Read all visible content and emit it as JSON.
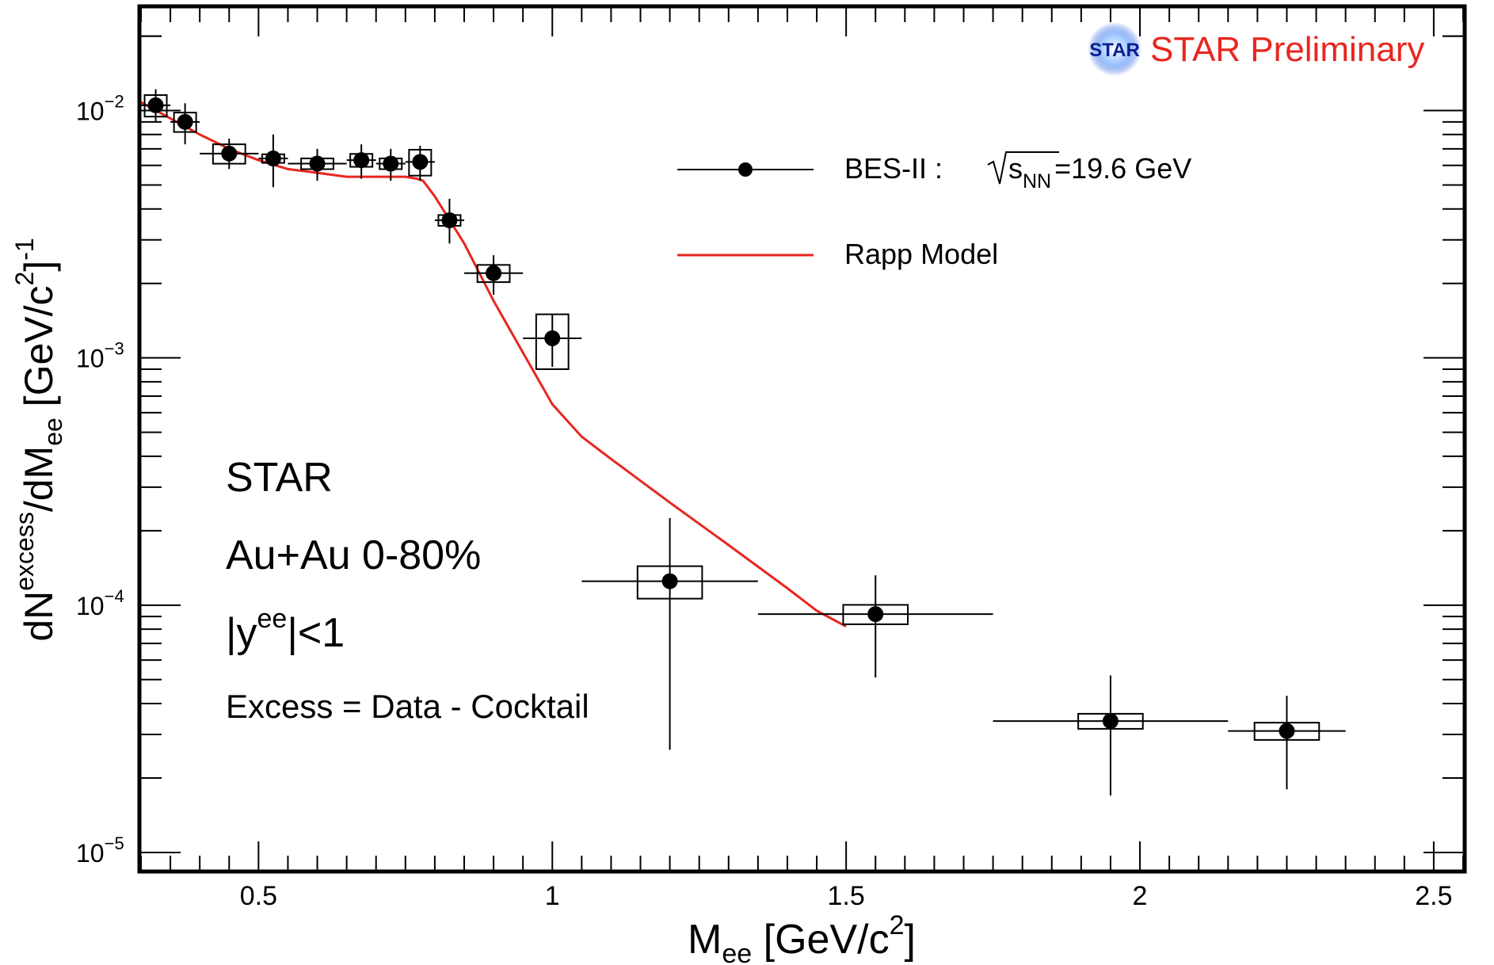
{
  "chart_data": {
    "type": "scatter",
    "yscale": "log",
    "xlim": [
      0.3,
      2.55
    ],
    "ylim": [
      8.5e-06,
      0.026
    ],
    "xticks": [
      {
        "value": 0.5,
        "label": "0.5"
      },
      {
        "value": 1,
        "label": "1"
      },
      {
        "value": 1.5,
        "label": "1.5"
      },
      {
        "value": 2,
        "label": "2"
      },
      {
        "value": 2.5,
        "label": "2.5"
      }
    ],
    "yticks": [
      {
        "value": 0.01,
        "base": "10",
        "exp": "−2"
      },
      {
        "value": 0.001,
        "base": "10",
        "exp": "−3"
      },
      {
        "value": 0.0001,
        "base": "10",
        "exp": "−4"
      },
      {
        "value": 1e-05,
        "base": "10",
        "exp": "−5"
      }
    ],
    "xlabel": {
      "main": "M",
      "sub": "ee",
      "rest": " [GeV/c",
      "sup": "2",
      "close": "]"
    },
    "ylabel": {
      "p1": "dN",
      "sup1": "excess",
      "p2": "/dM",
      "sub1": "ee",
      "p3": " [GeV/c",
      "sup2": "2",
      "p4": "]",
      "sup3": "-1"
    },
    "badge": {
      "logo_text": "STAR",
      "text": "STAR Preliminary",
      "color": "#e8261f"
    },
    "annotations": {
      "line1": "STAR",
      "line2": "Au+Au 0-80%",
      "line3_pre": "|y",
      "line3_sup": "ee",
      "line3_post": "|<1",
      "line4": "Excess = Data - Cocktail"
    },
    "legend": {
      "data_label": "BES-II :",
      "energy_var": "s",
      "energy_sub": "NN",
      "energy_value": "=19.6 GeV",
      "model_label": "Rapp Model",
      "model_color": "#e8261f"
    },
    "series": [
      {
        "name": "BES-II 19.6 GeV",
        "kind": "points",
        "points": [
          {
            "x": 0.325,
            "xerr": 0.025,
            "y": 0.0105,
            "ylo": 0.009,
            "yhi": 0.0122,
            "sys": 0.1
          },
          {
            "x": 0.375,
            "xerr": 0.025,
            "y": 0.009,
            "ylo": 0.0073,
            "yhi": 0.0107,
            "sys": 0.09
          },
          {
            "x": 0.45,
            "xerr": 0.05,
            "y": 0.0067,
            "ylo": 0.0058,
            "yhi": 0.0077,
            "sys": 0.09
          },
          {
            "x": 0.525,
            "xerr": 0.025,
            "y": 0.0064,
            "ylo": 0.0049,
            "yhi": 0.008,
            "sys": 0.04
          },
          {
            "x": 0.6,
            "xerr": 0.05,
            "y": 0.0061,
            "ylo": 0.0052,
            "yhi": 0.007,
            "sys": 0.05
          },
          {
            "x": 0.675,
            "xerr": 0.025,
            "y": 0.0063,
            "ylo": 0.0053,
            "yhi": 0.0073,
            "sys": 0.06
          },
          {
            "x": 0.725,
            "xerr": 0.025,
            "y": 0.0061,
            "ylo": 0.0052,
            "yhi": 0.007,
            "sys": 0.05
          },
          {
            "x": 0.775,
            "xerr": 0.025,
            "y": 0.0062,
            "ylo": 0.0052,
            "yhi": 0.0072,
            "sys": 0.12
          },
          {
            "x": 0.825,
            "xerr": 0.025,
            "y": 0.0036,
            "ylo": 0.0029,
            "yhi": 0.0044,
            "sys": 0.05
          },
          {
            "x": 0.9,
            "xerr": 0.05,
            "y": 0.0022,
            "ylo": 0.0018,
            "yhi": 0.0026,
            "sys": 0.08
          },
          {
            "x": 1.0,
            "xerr": 0.05,
            "y": 0.0012,
            "ylo": 0.00092,
            "yhi": 0.0015,
            "sys": 0.25
          },
          {
            "x": 1.2,
            "xerr": 0.15,
            "y": 0.000125,
            "ylo": 2.6e-05,
            "yhi": 0.000225,
            "sys": 0.15
          },
          {
            "x": 1.55,
            "xerr": 0.2,
            "y": 9.2e-05,
            "ylo": 5.1e-05,
            "yhi": 0.000132,
            "sys": 0.09
          },
          {
            "x": 1.95,
            "xerr": 0.2,
            "y": 3.4e-05,
            "ylo": 1.7e-05,
            "yhi": 5.2e-05,
            "sys": 0.07
          },
          {
            "x": 2.25,
            "xerr": 0.1,
            "y": 3.1e-05,
            "ylo": 1.8e-05,
            "yhi": 4.3e-05,
            "sys": 0.08
          }
        ]
      },
      {
        "name": "Rapp Model",
        "kind": "line",
        "x": [
          0.3,
          0.35,
          0.4,
          0.45,
          0.5,
          0.55,
          0.6,
          0.65,
          0.7,
          0.75,
          0.77,
          0.78,
          0.8,
          0.85,
          0.9,
          0.95,
          1.0,
          1.05,
          1.1,
          1.2,
          1.3,
          1.4,
          1.45,
          1.5
        ],
        "y": [
          0.0108,
          0.0093,
          0.008,
          0.007,
          0.0063,
          0.0058,
          0.0056,
          0.0054,
          0.0054,
          0.0054,
          0.0053,
          0.0052,
          0.0045,
          0.0029,
          0.0017,
          0.00105,
          0.00065,
          0.00048,
          0.00039,
          0.00026,
          0.000175,
          0.000117,
          9.5e-05,
          8.2e-05
        ]
      }
    ]
  }
}
